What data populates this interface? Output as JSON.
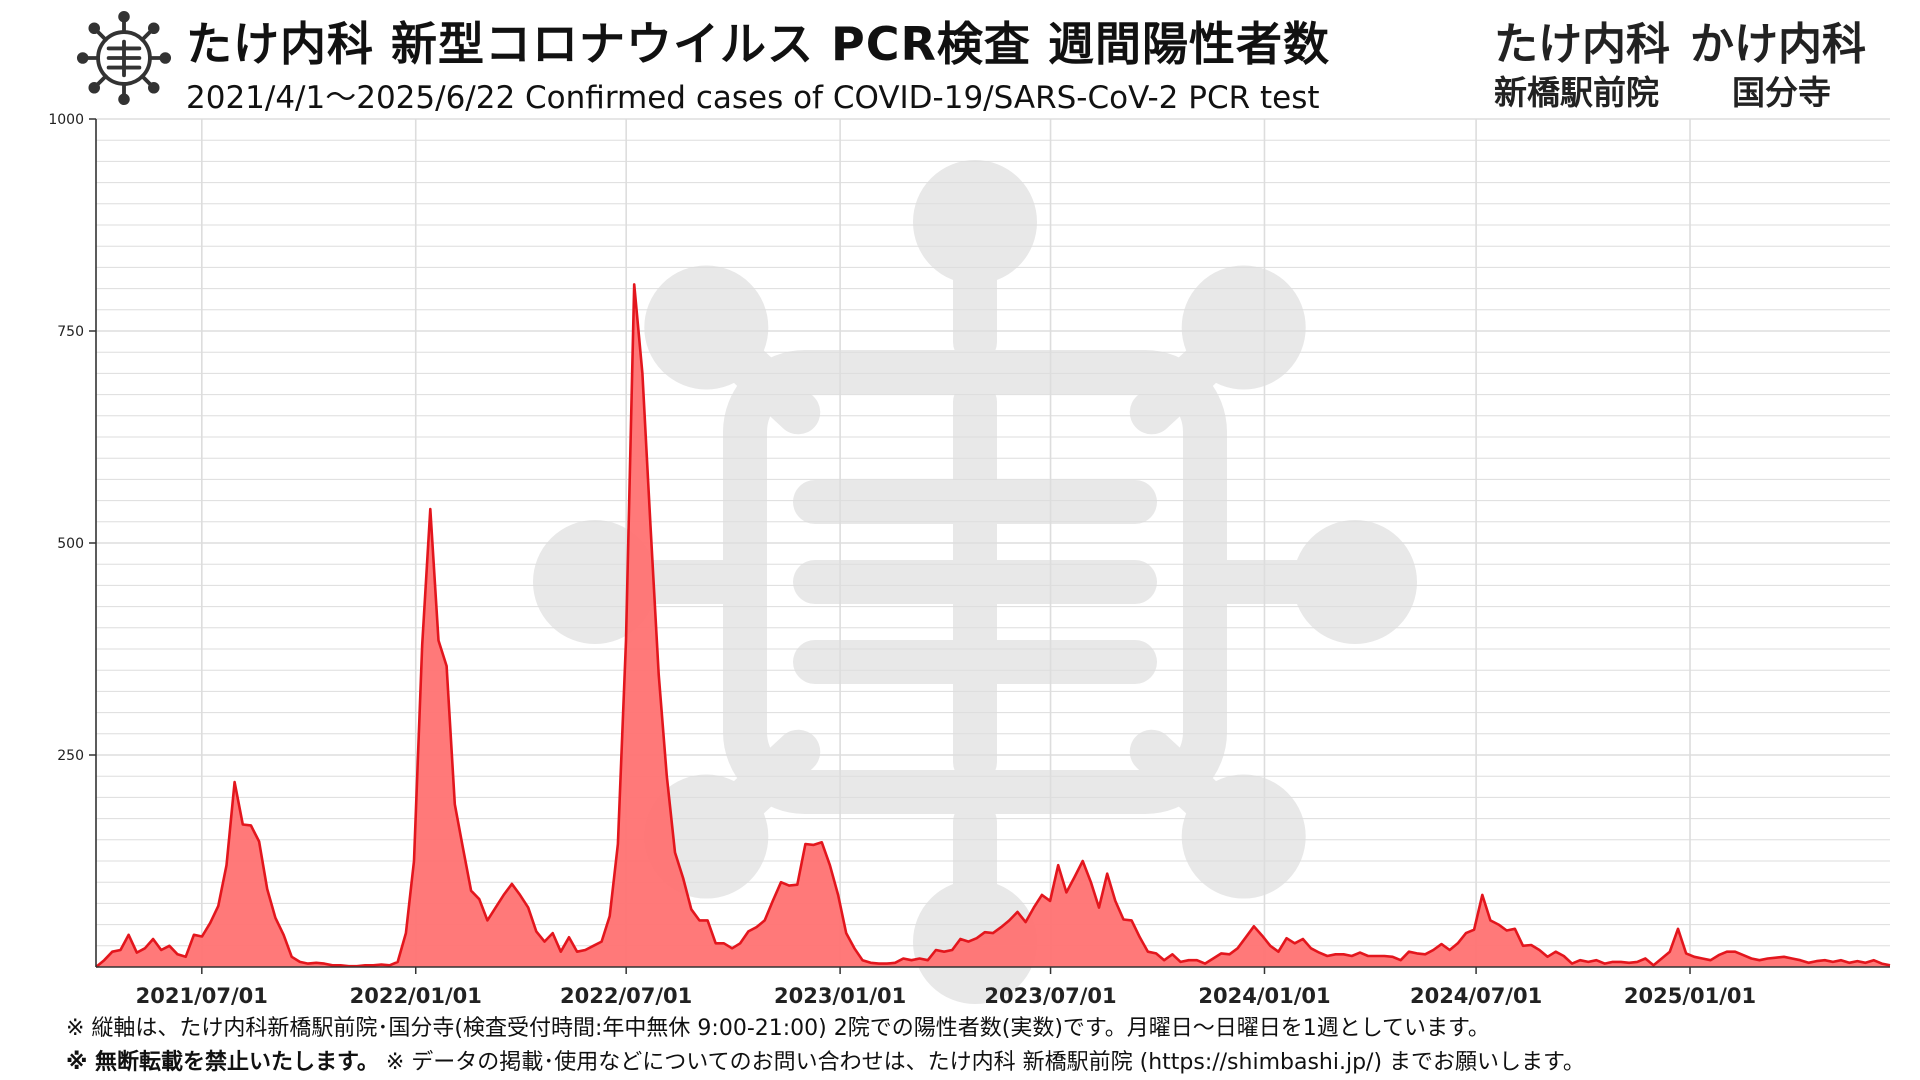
{
  "header": {
    "title": "たけ内科 新型コロナウイルス PCR検査 週間陽性者数",
    "subtitle": "2021/4/1～2025/6/22 Confirmed cases of COVID-19/SARS-CoV-2 PCR test",
    "clinics": [
      {
        "name": "たけ内科",
        "branch": "新橋駅前院"
      },
      {
        "name": "かけ内科",
        "branch": "国分寺"
      }
    ]
  },
  "colors": {
    "line": "#e3161d",
    "fill": "#ff7272",
    "grid": "#dddddd",
    "watermark": "#e8e8e8"
  },
  "chart_data": {
    "type": "area",
    "title": "",
    "xlabel": "",
    "ylabel": "",
    "ylim": [
      0,
      1000
    ],
    "yticks": [
      "1000",
      "750",
      "500",
      "250"
    ],
    "xticks": [
      "2021/07/01",
      "2022/01/01",
      "2022/07/01",
      "2023/01/01",
      "2023/07/01",
      "2024/01/01",
      "2024/07/01",
      "2025/01/01"
    ],
    "x_range": [
      "2021-04-01",
      "2025-06-22"
    ],
    "grid": true,
    "series": [
      {
        "values": [
          0,
          8,
          18,
          20,
          38,
          17,
          22,
          33,
          20,
          25,
          15,
          12,
          38,
          36,
          52,
          72,
          120,
          218,
          168,
          167,
          148,
          92,
          58,
          38,
          12,
          6,
          4,
          5,
          4,
          2,
          2,
          1,
          1,
          2,
          2,
          3,
          2,
          6,
          40,
          125,
          380,
          540,
          385,
          355,
          192,
          140,
          90,
          80,
          55,
          70,
          85,
          98,
          85,
          70,
          42,
          30,
          40,
          18,
          35,
          18,
          20,
          25,
          30,
          60,
          145,
          385,
          805,
          700,
          520,
          345,
          225,
          135,
          105,
          68,
          55,
          55,
          28,
          28,
          22,
          28,
          42,
          47,
          55,
          78,
          100,
          96,
          97,
          145,
          144,
          147,
          120,
          85,
          40,
          22,
          8,
          5,
          4,
          4,
          5,
          10,
          8,
          10,
          8,
          20,
          18,
          20,
          33,
          30,
          34,
          41,
          40,
          47,
          55,
          65,
          53,
          70,
          85,
          78,
          120,
          88,
          106,
          125,
          100,
          70,
          110,
          78,
          56,
          55,
          35,
          18,
          16,
          8,
          15,
          6,
          8,
          8,
          4,
          10,
          16,
          15,
          22,
          35,
          48,
          37,
          25,
          18,
          34,
          28,
          33,
          22,
          17,
          13,
          15,
          15,
          13,
          17,
          13,
          13,
          13,
          12,
          8,
          18,
          16,
          15,
          20,
          27,
          20,
          28,
          40,
          44,
          85,
          55,
          50,
          43,
          45,
          25,
          26,
          20,
          12,
          18,
          13,
          4,
          8,
          6,
          8,
          4,
          6,
          6,
          5,
          6,
          10,
          2,
          10,
          18,
          45,
          16,
          12,
          10,
          8,
          14,
          18,
          18,
          14,
          10,
          8,
          10,
          11,
          12,
          10,
          8,
          5,
          7,
          8,
          6,
          8,
          5,
          7,
          5,
          8,
          4,
          2
        ]
      }
    ]
  },
  "notes": {
    "line1": "※ 縦軸は、たけ内科新橋駅前院･国分寺(検査受付時間:年中無休 9:00-21:00) 2院での陽性者数(実数)です。月曜日～日曜日を1週としています。",
    "line2_bold": "※ 無断転載を禁止いたします。",
    "line2_rest": " ※ データの掲載･使用などについてのお問い合わせは、たけ内科 新橋駅前院 (https://shimbashi.jp/) までお願いします。"
  }
}
